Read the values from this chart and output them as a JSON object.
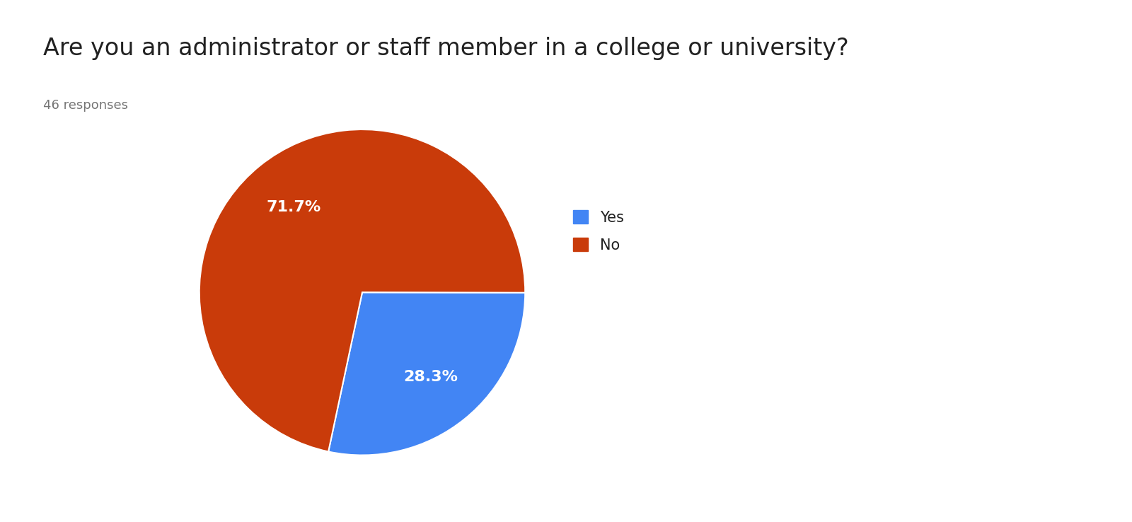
{
  "title": "Are you an administrator or staff member in a college or university?",
  "subtitle": "46 responses",
  "labels": [
    "Yes",
    "No"
  ],
  "values": [
    28.3,
    71.7
  ],
  "colors": [
    "#4285F4",
    "#C93B0A"
  ],
  "label_colors": [
    "white",
    "white"
  ],
  "title_fontsize": 24,
  "subtitle_fontsize": 13,
  "title_color": "#212121",
  "subtitle_color": "#757575",
  "legend_fontsize": 15,
  "pct_fontsize": 16,
  "background_color": "#ffffff",
  "startangle": -102,
  "pct_distance": 0.67
}
